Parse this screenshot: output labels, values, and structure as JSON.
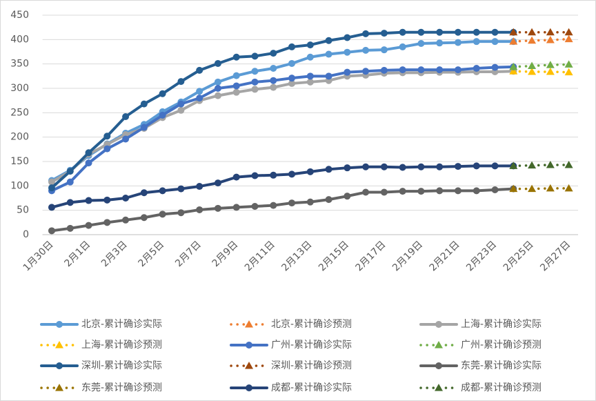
{
  "chart_data": {
    "type": "line",
    "categories": [
      "1月30日",
      null,
      "2月1日",
      null,
      "2月3日",
      null,
      "2月5日",
      null,
      "2月7日",
      null,
      "2月9日",
      null,
      "2月11日",
      null,
      "2月13日",
      null,
      "2月15日",
      null,
      "2月17日",
      null,
      "2月19日",
      null,
      "2月21日",
      null,
      "2月23日",
      null,
      "2月25日",
      null,
      "2月27日"
    ],
    "ylim": [
      0,
      450
    ],
    "yticks": [
      0,
      50,
      100,
      150,
      200,
      250,
      300,
      350,
      400,
      450
    ],
    "grid": true,
    "legend": "bottom",
    "series": [
      {
        "name": "北京-累计确诊实际",
        "color": "#5b9bd5",
        "line_style": "solid",
        "marker": "circle",
        "values": [
          111,
          132,
          162,
          186,
          208,
          226,
          252,
          272,
          294,
          313,
          326,
          335,
          341,
          351,
          364,
          370,
          374,
          378,
          379,
          385,
          392,
          393,
          394,
          396,
          396,
          396,
          null,
          null,
          null
        ]
      },
      {
        "name": "北京-累计确诊预测",
        "color": "#ed7d31",
        "line_style": "dotted",
        "marker": "triangle",
        "values": [
          null,
          null,
          null,
          null,
          null,
          null,
          null,
          null,
          null,
          null,
          null,
          null,
          null,
          null,
          null,
          null,
          null,
          null,
          null,
          null,
          null,
          null,
          null,
          null,
          null,
          396,
          398,
          399,
          401
        ]
      },
      {
        "name": "上海-累计确诊实际",
        "color": "#a5a5a5",
        "line_style": "solid",
        "marker": "circle",
        "values": [
          108,
          130,
          165,
          185,
          205,
          218,
          240,
          255,
          275,
          285,
          292,
          298,
          302,
          310,
          313,
          316,
          325,
          327,
          331,
          332,
          332,
          333,
          333,
          334,
          334,
          335,
          null,
          null,
          null
        ]
      },
      {
        "name": "上海-累计确诊预测",
        "color": "#ffc000",
        "line_style": "dotted",
        "marker": "triangle",
        "values": [
          null,
          null,
          null,
          null,
          null,
          null,
          null,
          null,
          null,
          null,
          null,
          null,
          null,
          null,
          null,
          null,
          null,
          null,
          null,
          null,
          null,
          null,
          null,
          null,
          null,
          335,
          334,
          334,
          333
        ]
      },
      {
        "name": "广州-累计确诊实际",
        "color": "#4472c4",
        "line_style": "solid",
        "marker": "circle",
        "values": [
          90,
          108,
          147,
          176,
          196,
          220,
          245,
          268,
          280,
          300,
          305,
          313,
          316,
          321,
          325,
          325,
          333,
          335,
          337,
          338,
          338,
          338,
          338,
          341,
          343,
          344,
          null,
          null,
          null
        ]
      },
      {
        "name": "广州-累计确诊预测",
        "color": "#70ad47",
        "line_style": "dotted",
        "marker": "triangle",
        "values": [
          null,
          null,
          null,
          null,
          null,
          null,
          null,
          null,
          null,
          null,
          null,
          null,
          null,
          null,
          null,
          null,
          null,
          null,
          null,
          null,
          null,
          null,
          null,
          null,
          null,
          344,
          346,
          348,
          349
        ]
      },
      {
        "name": "深圳-累计确诊实际",
        "color": "#255e91",
        "line_style": "solid",
        "marker": "circle",
        "values": [
          96,
          130,
          168,
          202,
          242,
          268,
          289,
          314,
          337,
          351,
          364,
          366,
          372,
          385,
          389,
          398,
          404,
          412,
          413,
          415,
          415,
          415,
          415,
          415,
          415,
          415,
          null,
          null,
          null
        ]
      },
      {
        "name": "深圳-累计确诊预测",
        "color": "#9e480e",
        "line_style": "dotted",
        "marker": "triangle",
        "values": [
          null,
          null,
          null,
          null,
          null,
          null,
          null,
          null,
          null,
          null,
          null,
          null,
          null,
          null,
          null,
          null,
          null,
          null,
          null,
          null,
          null,
          null,
          null,
          null,
          null,
          415,
          415,
          415,
          415
        ]
      },
      {
        "name": "东莞-累计确诊实际",
        "color": "#636363",
        "line_style": "solid",
        "marker": "circle",
        "values": [
          8,
          13,
          19,
          25,
          30,
          35,
          42,
          45,
          51,
          54,
          56,
          58,
          60,
          65,
          67,
          72,
          79,
          87,
          87,
          89,
          89,
          90,
          90,
          90,
          92,
          94,
          null,
          null,
          null
        ]
      },
      {
        "name": "东莞-累计确诊预测",
        "color": "#997300",
        "line_style": "dotted",
        "marker": "triangle",
        "values": [
          null,
          null,
          null,
          null,
          null,
          null,
          null,
          null,
          null,
          null,
          null,
          null,
          null,
          null,
          null,
          null,
          null,
          null,
          null,
          null,
          null,
          null,
          null,
          null,
          null,
          94,
          94,
          95,
          95
        ]
      },
      {
        "name": "成都-累计确诊实际",
        "color": "#264478",
        "line_style": "solid",
        "marker": "circle",
        "values": [
          56,
          66,
          70,
          71,
          75,
          86,
          90,
          94,
          99,
          106,
          118,
          121,
          122,
          124,
          129,
          134,
          137,
          139,
          139,
          138,
          139,
          139,
          140,
          141,
          141,
          141,
          null,
          null,
          null
        ]
      },
      {
        "name": "成都-累计确诊预测",
        "color": "#43682b",
        "line_style": "dotted",
        "marker": "triangle",
        "values": [
          null,
          null,
          null,
          null,
          null,
          null,
          null,
          null,
          null,
          null,
          null,
          null,
          null,
          null,
          null,
          null,
          null,
          null,
          null,
          null,
          null,
          null,
          null,
          null,
          null,
          141,
          142,
          143,
          143
        ]
      }
    ]
  }
}
